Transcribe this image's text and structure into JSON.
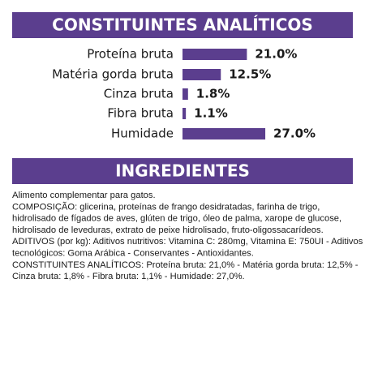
{
  "chart_data": {
    "type": "bar",
    "orientation": "horizontal",
    "title": "CONSTITUINTES ANALÍTICOS",
    "categories": [
      "Proteína bruta",
      "Matéria gorda bruta",
      "Cinza bruta",
      "Fibra bruta",
      "Humidade"
    ],
    "values": [
      21.0,
      12.5,
      1.8,
      1.1,
      27.0
    ],
    "value_labels": [
      "21.0%",
      "12.5%",
      "1.8%",
      "1.1%",
      "27.0%"
    ],
    "color": "#5b3e8e"
  },
  "ingredients": {
    "title": "INGREDIENTES",
    "lines": [
      "Alimento complementar para gatos.",
      "COMPOSIÇÃO: glicerina, proteínas de frango desidratadas, farinha de trigo,",
      "hidrolisado de fígados de aves, glúten de trigo, óleo de palma, xarope de glucose,",
      "hidrolisado de leveduras, extrato de peixe hidrolisado, fruto-oligossacarídeos.",
      "ADITIVOS (por kg): Aditivos nutritivos: Vitamina C: 280mg, Vitamina E: 750UI - Aditivos",
      "tecnológicos: Goma Arábica - Conservantes - Antioxidantes.",
      "CONSTITUINTES ANALÍTICOS: Proteína bruta: 21,0% - Matéria gorda bruta: 12,5% -",
      "Cinza bruta: 1,8% - Fibra bruta: 1,1% - Humidade: 27,0%."
    ]
  }
}
